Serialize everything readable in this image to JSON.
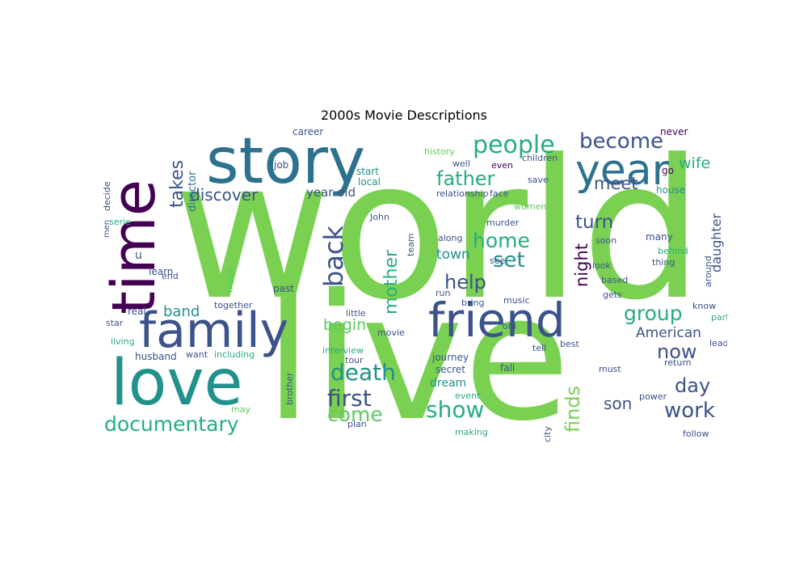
{
  "title": "2000s Movie Descriptions",
  "palette": {
    "green": "#7ad151",
    "purple": "#440154",
    "indigo": "#3b528b",
    "teal": "#21918c",
    "cyan": "#2c728e",
    "mint": "#5ec962",
    "sea": "#27ad81",
    "violet": "#482878"
  },
  "words": {
    "world": "world",
    "live": "live",
    "story": "story",
    "time": "time",
    "love": "love",
    "family": "family",
    "friend": "friend",
    "year": "year",
    "documentary": "documentary",
    "back": "back",
    "death": "death",
    "first": "first",
    "come": "come",
    "show": "show",
    "work": "work",
    "now": "now",
    "day": "day",
    "son": "son",
    "finds": "finds",
    "group": "group",
    "American": "American",
    "people": "people",
    "become": "become",
    "father": "father",
    "home": "home",
    "set": "set",
    "help": "help",
    "turn": "turn",
    "night": "night",
    "meet": "meet",
    "wife": "wife",
    "discover": "discover",
    "takes": "takes",
    "mother": "mother",
    "band": "band",
    "begin": "begin",
    "year_old": "year old",
    "town": "town",
    "daughter": "daughter",
    "director": "director",
    "career": "career",
    "job": "job",
    "start": "start",
    "local": "local",
    "history": "history",
    "even": "even",
    "children": "children",
    "relationship": "relationship",
    "face": "face",
    "never": "never",
    "go": "go",
    "house": "house",
    "decide": "decide",
    "serie": "serie",
    "men": "men",
    "learn": "learn",
    "end": "end",
    "made": "made",
    "past": "past",
    "real": "real",
    "star": "star",
    "living": "living",
    "husband": "husband",
    "want": "want",
    "including": "including",
    "together": "together",
    "little": "little",
    "movie": "movie",
    "old": "old",
    "interview": "interview",
    "tour": "tour",
    "journey": "journey",
    "secret": "secret",
    "dream": "dream",
    "event": "event",
    "plan": "plan",
    "making": "making",
    "brother": "brother",
    "may": "may",
    "tell": "tell",
    "fall": "fall",
    "best": "best",
    "must": "must",
    "power": "power",
    "follow": "follow",
    "city": "city",
    "return": "return",
    "lead": "lead",
    "know": "know",
    "part": "part",
    "based": "based",
    "gets": "gets",
    "look": "look",
    "thing": "thing",
    "behind": "behind",
    "many": "many",
    "soon": "soon",
    "around": "around",
    "music": "music",
    "murder": "murder",
    "bring": "bring",
    "run": "run",
    "along": "along",
    "see": "see",
    "John": "John",
    "team": "team",
    "save": "save",
    "well": "well",
    "women": "women",
    "u": "u"
  }
}
